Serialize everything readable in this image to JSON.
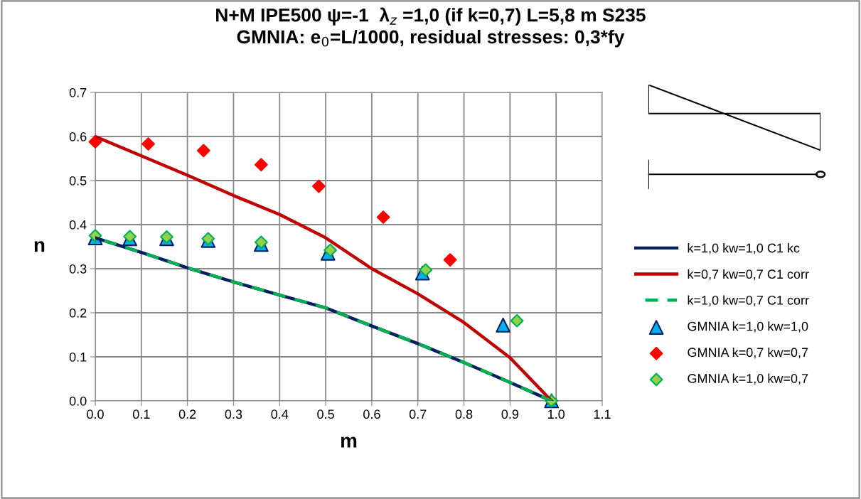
{
  "chart_data": {
    "type": "line",
    "title": "N+M IPE500 ψ=-1  λ$_{z}$ =1,0 (if k=0,7) L=5,8 m S235\nGMNIA: e$_{0}$=L/1000, residual stresses: 0,3*fy",
    "xlabel": "m",
    "ylabel": "n",
    "xlim": [
      0,
      1.1
    ],
    "xticks": [
      {
        "value": 0,
        "label": "0.0"
      },
      0.1,
      0.2,
      0.3,
      0.4,
      0.5,
      0.6,
      0.7,
      0.8,
      0.9,
      {
        "value": 1,
        "label": "1.0"
      },
      1.1
    ],
    "ylim": [
      0,
      0.7
    ],
    "yticks": [
      {
        "value": 0,
        "label": "0.0"
      },
      0.1,
      0.2,
      0.3,
      0.4,
      0.5,
      0.6,
      0.7
    ],
    "grid": true,
    "legend": "right",
    "series": [
      {
        "name": "k=1,0 kw=1,0 C1 kc",
        "type": "line",
        "color": "#002060",
        "line_style": "solid",
        "marker": "none",
        "x": [
          0,
          0.1,
          0.2,
          0.3,
          0.4,
          0.5,
          0.6,
          0.7,
          0.8,
          0.9,
          0.99
        ],
        "values": [
          0.37,
          0.337,
          0.302,
          0.27,
          0.24,
          0.211,
          0.17,
          0.13,
          0.087,
          0.042,
          0
        ]
      },
      {
        "name": "k=0,7 kw=0,7 C1 corr",
        "type": "line",
        "color": "#c00000",
        "line_style": "solid",
        "marker": "none",
        "x": [
          0,
          0.1,
          0.2,
          0.3,
          0.4,
          0.5,
          0.6,
          0.7,
          0.8,
          0.9,
          0.99
        ],
        "values": [
          0.6,
          0.556,
          0.512,
          0.466,
          0.423,
          0.37,
          0.3,
          0.243,
          0.178,
          0.098,
          0
        ]
      },
      {
        "name": "k=1,0 kw=0,7 C1 corr",
        "type": "line",
        "color": "#00b050",
        "line_style": "dashed",
        "marker": "none",
        "x": [
          0,
          0.1,
          0.2,
          0.3,
          0.4,
          0.5,
          0.6,
          0.7,
          0.8,
          0.9,
          0.99
        ],
        "values": [
          0.37,
          0.337,
          0.302,
          0.27,
          0.24,
          0.211,
          0.17,
          0.13,
          0.087,
          0.042,
          0
        ]
      },
      {
        "name": "GMNIA k=1,0 kw=1,0",
        "type": "scatter",
        "color": "#00b0f0",
        "marker": "triangle",
        "x": [
          0,
          0.075,
          0.155,
          0.245,
          0.36,
          0.505,
          0.71,
          0.885,
          0.99
        ],
        "values": [
          0.37,
          0.368,
          0.368,
          0.364,
          0.355,
          0.335,
          0.29,
          0.172,
          0
        ]
      },
      {
        "name": "GMNIA k=0,7 kw=0,7",
        "type": "scatter",
        "color": "#ff0000",
        "marker": "diamond",
        "x": [
          0,
          0.115,
          0.235,
          0.36,
          0.485,
          0.625,
          0.77
        ],
        "values": [
          0.588,
          0.583,
          0.568,
          0.536,
          0.487,
          0.417,
          0.32
        ]
      },
      {
        "name": "GMNIA k=1,0 kw=0,7",
        "type": "scatter",
        "color": "#92d050",
        "marker": "diamond",
        "x": [
          0,
          0.075,
          0.155,
          0.245,
          0.36,
          0.51,
          0.717,
          0.915,
          0.99
        ],
        "values": [
          0.375,
          0.373,
          0.372,
          0.368,
          0.36,
          0.342,
          0.297,
          0.182,
          0
        ]
      }
    ]
  }
}
